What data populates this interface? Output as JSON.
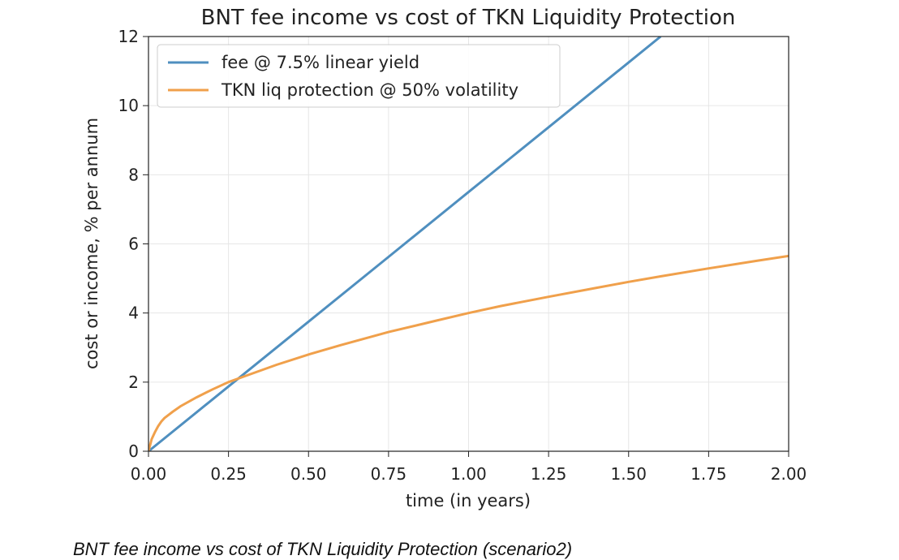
{
  "chart_data": {
    "type": "line",
    "title": "BNT fee income vs cost of TKN Liquidity Protection",
    "xlabel": "time (in years)",
    "ylabel": "cost or income, % per annum",
    "xlim": [
      0,
      2.0
    ],
    "ylim": [
      0,
      12
    ],
    "xticks": [
      "0.00",
      "0.25",
      "0.50",
      "0.75",
      "1.00",
      "1.25",
      "1.50",
      "1.75",
      "2.00"
    ],
    "xtick_values": [
      0,
      0.25,
      0.5,
      0.75,
      1.0,
      1.25,
      1.5,
      1.75,
      2.0
    ],
    "yticks": [
      "0",
      "2",
      "4",
      "6",
      "8",
      "10",
      "12"
    ],
    "ytick_values": [
      0,
      2,
      4,
      6,
      8,
      10,
      12
    ],
    "grid": true,
    "legend_position": "top-left",
    "series": [
      {
        "name": "fee @ 7.5% linear yield",
        "color": "#4f8fbf",
        "x": [
          0,
          0.25,
          0.5,
          0.75,
          1.0,
          1.25,
          1.5,
          1.6
        ],
        "y": [
          0,
          1.875,
          3.75,
          5.625,
          7.5,
          9.375,
          11.25,
          12.0
        ]
      },
      {
        "name": "TKN liq protection @ 50% volatility",
        "color": "#f0a04b",
        "x": [
          0,
          0.01,
          0.02,
          0.03,
          0.04,
          0.05,
          0.075,
          0.1,
          0.15,
          0.2,
          0.25,
          0.3,
          0.4,
          0.5,
          0.6,
          0.75,
          0.9,
          1.0,
          1.1,
          1.25,
          1.4,
          1.5,
          1.6,
          1.75,
          1.9,
          2.0
        ],
        "y": [
          0,
          0.35,
          0.55,
          0.72,
          0.86,
          0.96,
          1.14,
          1.3,
          1.56,
          1.79,
          2.0,
          2.17,
          2.5,
          2.8,
          3.07,
          3.45,
          3.78,
          4.0,
          4.2,
          4.47,
          4.73,
          4.9,
          5.06,
          5.29,
          5.51,
          5.65
        ]
      }
    ]
  },
  "caption": "BNT fee income vs cost of TKN Liquidity Protection (scenario2)"
}
